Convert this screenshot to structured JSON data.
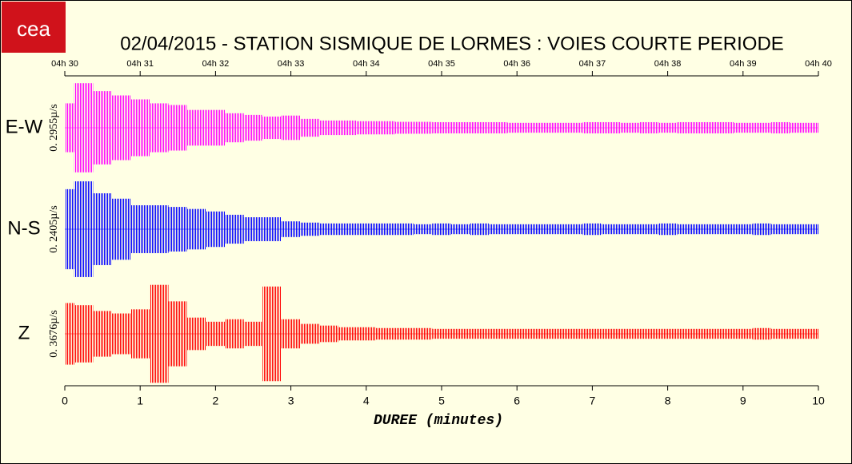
{
  "logo": "cea",
  "chart_data": {
    "type": "seismogram",
    "title": "02/04/2015  -  STATION SISMIQUE DE LORMES : VOIES COURTE PERIODE",
    "xlabel": "DUREE (minutes)",
    "xlim": [
      0,
      10
    ],
    "xticks": [
      0,
      1,
      2,
      3,
      4,
      5,
      6,
      7,
      8,
      9,
      10
    ],
    "top_labels": [
      "04h 30",
      "04h 31",
      "04h 32",
      "04h 33",
      "04h 34",
      "04h 35",
      "04h 36",
      "04h 37",
      "04h 38",
      "04h 39",
      "04h 40"
    ],
    "x": [
      0,
      0.25,
      0.5,
      0.75,
      1,
      1.25,
      1.5,
      1.75,
      2,
      2.25,
      2.5,
      2.75,
      3,
      3.25,
      3.5,
      3.75,
      4,
      4.25,
      4.5,
      4.75,
      5,
      5.25,
      5.5,
      5.75,
      6,
      6.25,
      6.5,
      6.75,
      7,
      7.25,
      7.5,
      7.75,
      8,
      8.25,
      8.5,
      8.75,
      9,
      9.25,
      9.5,
      9.75,
      10
    ],
    "series": [
      {
        "name": "E-W",
        "scale_label": "0. 2955µ/s",
        "color": "#ff00ff",
        "ylim": [
          -0.15,
          0.15
        ],
        "values": [
          0.074,
          0.135,
          0.111,
          0.098,
          0.086,
          0.074,
          0.069,
          0.054,
          0.054,
          0.044,
          0.039,
          0.034,
          0.037,
          0.027,
          0.022,
          0.022,
          0.02,
          0.02,
          0.018,
          0.018,
          0.017,
          0.017,
          0.017,
          0.017,
          0.015,
          0.015,
          0.015,
          0.015,
          0.017,
          0.017,
          0.015,
          0.017,
          0.015,
          0.017,
          0.017,
          0.017,
          0.015,
          0.015,
          0.017,
          0.015,
          0.015
        ]
      },
      {
        "name": "N-S",
        "scale_label": "0. 2405µ/s",
        "color": "#0000ff",
        "ylim": [
          -0.12,
          0.12
        ],
        "values": [
          0.097,
          0.116,
          0.087,
          0.074,
          0.058,
          0.058,
          0.054,
          0.049,
          0.043,
          0.035,
          0.029,
          0.029,
          0.019,
          0.016,
          0.014,
          0.014,
          0.014,
          0.014,
          0.014,
          0.012,
          0.014,
          0.012,
          0.014,
          0.012,
          0.012,
          0.012,
          0.012,
          0.012,
          0.014,
          0.012,
          0.012,
          0.012,
          0.014,
          0.012,
          0.012,
          0.012,
          0.012,
          0.014,
          0.012,
          0.012,
          0.012
        ]
      },
      {
        "name": "Z",
        "scale_label": "0. 3676µ/s",
        "color": "#ff0000",
        "ylim": [
          -0.18,
          0.18
        ],
        "values": [
          0.112,
          0.104,
          0.083,
          0.074,
          0.089,
          0.178,
          0.118,
          0.059,
          0.044,
          0.053,
          0.044,
          0.172,
          0.053,
          0.036,
          0.03,
          0.024,
          0.024,
          0.021,
          0.021,
          0.021,
          0.018,
          0.018,
          0.018,
          0.018,
          0.018,
          0.018,
          0.018,
          0.018,
          0.018,
          0.018,
          0.018,
          0.018,
          0.018,
          0.018,
          0.018,
          0.018,
          0.018,
          0.021,
          0.018,
          0.018,
          0.018
        ]
      }
    ]
  }
}
